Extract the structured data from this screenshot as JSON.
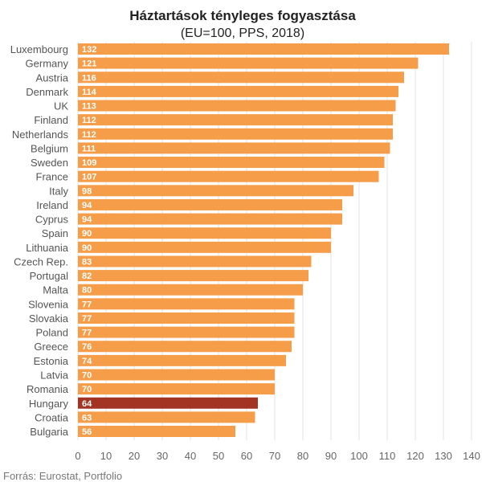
{
  "chart_data": {
    "type": "bar",
    "orientation": "horizontal",
    "title": "Háztartások tényleges fogyasztása",
    "subtitle": "(EU=100, PPS, 2018)",
    "categories": [
      "Luxembourg",
      "Germany",
      "Austria",
      "Denmark",
      "UK",
      "Finland",
      "Netherlands",
      "Belgium",
      "Sweden",
      "France",
      "Italy",
      "Ireland",
      "Cyprus",
      "Spain",
      "Lithuania",
      "Czech Rep.",
      "Portugal",
      "Malta",
      "Slovenia",
      "Slovakia",
      "Poland",
      "Greece",
      "Estonia",
      "Latvia",
      "Romania",
      "Hungary",
      "Croatia",
      "Bulgaria"
    ],
    "values": [
      132,
      121,
      116,
      114,
      113,
      112,
      112,
      111,
      109,
      107,
      98,
      94,
      94,
      90,
      90,
      83,
      82,
      80,
      77,
      77,
      77,
      76,
      74,
      70,
      70,
      64,
      63,
      56
    ],
    "xlim": [
      0,
      140
    ],
    "xticks": [
      0,
      10,
      20,
      30,
      40,
      50,
      60,
      70,
      80,
      90,
      100,
      110,
      120,
      130,
      140
    ],
    "grid": true,
    "highlight": "Hungary",
    "colors": {
      "bar": "#F59D48",
      "highlight": "#A33424"
    },
    "source": "Forrás: Eurostat, Portfolio"
  }
}
